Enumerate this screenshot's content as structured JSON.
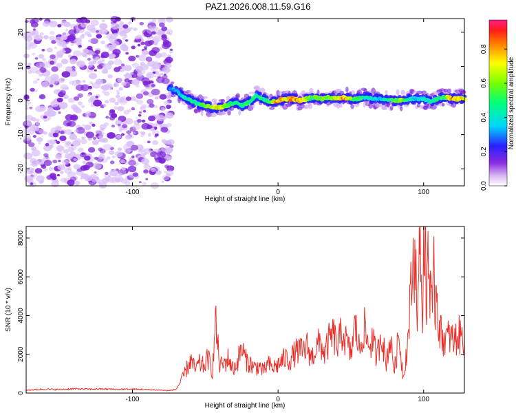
{
  "title": "PAZ1.2026.008.11.59.G16",
  "colors": {
    "frame": "#000000",
    "snr_line": "#e8302a",
    "scatter_purple": "#7a1fd6",
    "scatter_light": "#d9bff7"
  },
  "chart_data": [
    {
      "type": "heatmap",
      "name": "spectrogram",
      "xlabel": "Height of straight line (km)",
      "ylabel": "Frequency (Hz)",
      "xlim": [
        -173,
        128
      ],
      "ylim": [
        -25,
        24
      ],
      "xticks": [
        {
          "value": -100,
          "label": "-100"
        },
        {
          "value": 0,
          "label": "0"
        },
        {
          "value": 100,
          "label": "100"
        }
      ],
      "yticks": [
        {
          "value": -20,
          "label": "-20"
        },
        {
          "value": -10,
          "label": "-10"
        },
        {
          "value": 0,
          "label": "0"
        },
        {
          "value": 10,
          "label": "10"
        },
        {
          "value": 20,
          "label": "20"
        }
      ],
      "noise_region": {
        "x_from": -173,
        "x_to": -73,
        "amplitude_range": [
          0.05,
          0.2
        ]
      },
      "signal_track": {
        "x": [
          -75,
          -70,
          -65,
          -60,
          -55,
          -50,
          -45,
          -40,
          -35,
          -30,
          -25,
          -20,
          -15,
          -10,
          -5,
          0,
          5,
          10,
          15,
          20,
          25,
          30,
          35,
          40,
          45,
          50,
          55,
          60,
          65,
          70,
          75,
          80,
          85,
          90,
          95,
          100,
          105,
          110,
          115,
          120,
          125
        ],
        "freq": [
          3.5,
          3,
          1,
          0,
          -1,
          -1.5,
          -2,
          -2,
          -1.5,
          -0.5,
          -1.5,
          -0.5,
          1.5,
          0.5,
          -0.5,
          0,
          0.5,
          0.5,
          0,
          0.5,
          1,
          0.5,
          1,
          0.5,
          1,
          0.5,
          0.5,
          1,
          0.5,
          0.5,
          0,
          0,
          0,
          0.5,
          0.5,
          0.5,
          -0.5,
          0.5,
          1,
          0.5,
          0.5
        ],
        "amplitude": [
          0.3,
          0.4,
          0.45,
          0.5,
          0.55,
          0.6,
          0.7,
          0.8,
          0.6,
          0.55,
          0.5,
          0.6,
          0.5,
          0.55,
          0.65,
          0.9,
          0.85,
          0.9,
          0.95,
          0.7,
          0.6,
          0.65,
          0.7,
          0.75,
          0.95,
          0.7,
          0.6,
          0.5,
          0.45,
          0.4,
          0.5,
          0.6,
          0.7,
          0.5,
          0.4,
          0.45,
          0.5,
          0.55,
          0.6,
          0.95,
          0.85
        ]
      }
    },
    {
      "type": "colorbar",
      "name": "amplitude-colorbar",
      "label": "Normalized spectral amplitude",
      "range": [
        0,
        0.97
      ],
      "ticks": [
        {
          "value": 0,
          "label": "0.0"
        },
        {
          "value": 0.2,
          "label": "0.2"
        },
        {
          "value": 0.4,
          "label": "0.4"
        },
        {
          "value": 0.6,
          "label": "0.6"
        },
        {
          "value": 0.8,
          "label": "0.8"
        }
      ]
    },
    {
      "type": "line",
      "name": "snr",
      "xlabel": "Height of straight line (km)",
      "ylabel": "SNR (10 * v/v)",
      "xlim": [
        -173,
        128
      ],
      "ylim": [
        0,
        8600
      ],
      "xticks": [
        {
          "value": -100,
          "label": "-100"
        },
        {
          "value": 0,
          "label": "0"
        },
        {
          "value": 100,
          "label": "100"
        }
      ],
      "yticks": [
        {
          "value": 0,
          "label": "0"
        },
        {
          "value": 2000,
          "label": "2000"
        },
        {
          "value": 4000,
          "label": "4000"
        },
        {
          "value": 6000,
          "label": "6000"
        },
        {
          "value": 8000,
          "label": "8000"
        }
      ],
      "series": [
        {
          "name": "SNR",
          "x": [
            -173,
            -160,
            -150,
            -140,
            -130,
            -120,
            -110,
            -100,
            -90,
            -80,
            -75,
            -70,
            -66,
            -63,
            -60,
            -57,
            -54,
            -51,
            -48,
            -45,
            -43,
            -40,
            -37,
            -34,
            -31,
            -28,
            -25,
            -22,
            -19,
            -16,
            -13,
            -10,
            -7,
            -4,
            -1,
            2,
            5,
            8,
            11,
            14,
            17,
            20,
            23,
            26,
            29,
            32,
            35,
            38,
            41,
            44,
            47,
            50,
            53,
            56,
            59,
            62,
            65,
            68,
            71,
            74,
            77,
            80,
            83,
            86,
            89,
            92,
            94,
            96,
            97,
            98,
            99,
            100,
            101,
            102,
            103,
            104,
            105,
            106,
            107,
            108,
            109,
            110,
            112,
            115,
            118,
            121,
            124,
            128
          ],
          "y": [
            150,
            200,
            180,
            220,
            200,
            210,
            190,
            200,
            180,
            150,
            120,
            200,
            700,
            1200,
            1700,
            1200,
            1500,
            1400,
            1800,
            1100,
            3700,
            1400,
            1500,
            1800,
            1200,
            1600,
            2300,
            1700,
            1500,
            1300,
            1400,
            1100,
            1500,
            1300,
            1400,
            1600,
            1800,
            1700,
            2000,
            2200,
            2100,
            2400,
            1800,
            2300,
            2600,
            2000,
            2700,
            3000,
            2400,
            3200,
            2600,
            2000,
            3500,
            2200,
            3400,
            2500,
            2700,
            1800,
            3300,
            1500,
            2800,
            1200,
            3000,
            800,
            2600,
            6000,
            7400,
            4000,
            6800,
            8300,
            3500,
            7100,
            8500,
            4200,
            8000,
            5500,
            6500,
            3300,
            6000,
            4500,
            6000,
            3800,
            3000,
            2800,
            2900,
            2700,
            3000,
            2800
          ]
        }
      ]
    }
  ]
}
